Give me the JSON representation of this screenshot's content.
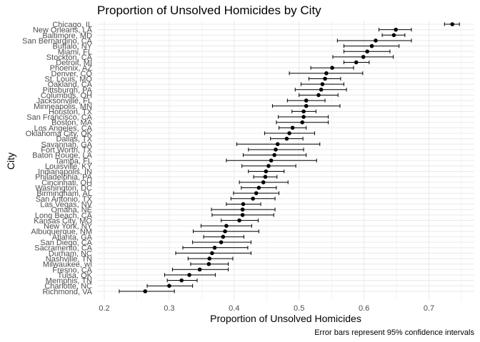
{
  "chart_data": {
    "type": "scatter",
    "title": "Proportion of Unsolved Homicides by City",
    "xlabel": "Proportion of Unsolved Homicides",
    "ylabel": "City",
    "caption": "Error bars represent 95% confidence intervals",
    "xlim": [
      0.2,
      0.75
    ],
    "xticks": [
      "0.2",
      "0.3",
      "0.4",
      "0.5",
      "0.6",
      "0.7"
    ],
    "grid": true,
    "legend": "none",
    "point_color": "#000000",
    "grid_color": "#ebebeb",
    "series": [
      {
        "error_bars": "95% confidence interval",
        "points": [
          {
            "city": "Chicago, IL",
            "estimate": 0.736,
            "lower": 0.724,
            "upper": 0.747
          },
          {
            "city": "New Orleans, LA",
            "estimate": 0.649,
            "lower": 0.623,
            "upper": 0.673
          },
          {
            "city": "Baltimore, MD",
            "estimate": 0.646,
            "lower": 0.628,
            "upper": 0.663
          },
          {
            "city": "San Bernardino, CA",
            "estimate": 0.618,
            "lower": 0.559,
            "upper": 0.673
          },
          {
            "city": "Buffalo, NY",
            "estimate": 0.612,
            "lower": 0.569,
            "upper": 0.654
          },
          {
            "city": "Miami, FL",
            "estimate": 0.605,
            "lower": 0.569,
            "upper": 0.64
          },
          {
            "city": "Stockton, CA",
            "estimate": 0.599,
            "lower": 0.552,
            "upper": 0.645
          },
          {
            "city": "Detroit, MI",
            "estimate": 0.588,
            "lower": 0.569,
            "upper": 0.608
          },
          {
            "city": "Phoenix, AZ",
            "estimate": 0.551,
            "lower": 0.518,
            "upper": 0.584
          },
          {
            "city": "Denver, CO",
            "estimate": 0.542,
            "lower": 0.485,
            "upper": 0.598
          },
          {
            "city": "St. Louis, MO",
            "estimate": 0.54,
            "lower": 0.515,
            "upper": 0.564
          },
          {
            "city": "Oakland, CA",
            "estimate": 0.536,
            "lower": 0.503,
            "upper": 0.569
          },
          {
            "city": "Pittsburgh, PA",
            "estimate": 0.534,
            "lower": 0.494,
            "upper": 0.573
          },
          {
            "city": "Columbus, OH",
            "estimate": 0.53,
            "lower": 0.5,
            "upper": 0.56
          },
          {
            "city": "Jacksonville, FL",
            "estimate": 0.511,
            "lower": 0.482,
            "upper": 0.54
          },
          {
            "city": "Minneapolis, MN",
            "estimate": 0.511,
            "lower": 0.459,
            "upper": 0.563
          },
          {
            "city": "Houston, TX",
            "estimate": 0.507,
            "lower": 0.489,
            "upper": 0.526
          },
          {
            "city": "San Francisco, CA",
            "estimate": 0.507,
            "lower": 0.468,
            "upper": 0.545
          },
          {
            "city": "Boston, MA",
            "estimate": 0.505,
            "lower": 0.465,
            "upper": 0.545
          },
          {
            "city": "Los Angeles, CA",
            "estimate": 0.49,
            "lower": 0.469,
            "upper": 0.511
          },
          {
            "city": "Oklahoma City, OK",
            "estimate": 0.485,
            "lower": 0.447,
            "upper": 0.524
          },
          {
            "city": "Dallas, TX",
            "estimate": 0.481,
            "lower": 0.456,
            "upper": 0.506
          },
          {
            "city": "Savannah, GA",
            "estimate": 0.467,
            "lower": 0.404,
            "upper": 0.532
          },
          {
            "city": "Fort Worth, TX",
            "estimate": 0.464,
            "lower": 0.422,
            "upper": 0.507
          },
          {
            "city": "Baton Rouge, LA",
            "estimate": 0.462,
            "lower": 0.414,
            "upper": 0.511
          },
          {
            "city": "Tampa, FL",
            "estimate": 0.457,
            "lower": 0.388,
            "upper": 0.527
          },
          {
            "city": "Louisville, KY",
            "estimate": 0.453,
            "lower": 0.412,
            "upper": 0.495
          },
          {
            "city": "Indianapolis, IN",
            "estimate": 0.449,
            "lower": 0.422,
            "upper": 0.477
          },
          {
            "city": "Philadelphia, PA",
            "estimate": 0.448,
            "lower": 0.43,
            "upper": 0.466
          },
          {
            "city": "Cincinnati, OH",
            "estimate": 0.445,
            "lower": 0.408,
            "upper": 0.483
          },
          {
            "city": "Washington, DC",
            "estimate": 0.438,
            "lower": 0.411,
            "upper": 0.465
          },
          {
            "city": "Birmingham, AL",
            "estimate": 0.434,
            "lower": 0.399,
            "upper": 0.469
          },
          {
            "city": "San Antonio, TX",
            "estimate": 0.429,
            "lower": 0.395,
            "upper": 0.463
          },
          {
            "city": "Las Vegas, NV",
            "estimate": 0.414,
            "lower": 0.388,
            "upper": 0.441
          },
          {
            "city": "Omaha, NE",
            "estimate": 0.413,
            "lower": 0.365,
            "upper": 0.463
          },
          {
            "city": "Long Beach, CA",
            "estimate": 0.413,
            "lower": 0.366,
            "upper": 0.461
          },
          {
            "city": "Kansas City, MO",
            "estimate": 0.408,
            "lower": 0.38,
            "upper": 0.437
          },
          {
            "city": "New York, NY",
            "estimate": 0.388,
            "lower": 0.349,
            "upper": 0.427
          },
          {
            "city": "Albuquerque, NM",
            "estimate": 0.386,
            "lower": 0.337,
            "upper": 0.438
          },
          {
            "city": "Atlanta, GA",
            "estimate": 0.383,
            "lower": 0.353,
            "upper": 0.415
          },
          {
            "city": "San Diego, CA",
            "estimate": 0.38,
            "lower": 0.336,
            "upper": 0.426
          },
          {
            "city": "Sacramento, CA",
            "estimate": 0.37,
            "lower": 0.321,
            "upper": 0.421
          },
          {
            "city": "Durham, NC",
            "estimate": 0.366,
            "lower": 0.31,
            "upper": 0.426
          },
          {
            "city": "Nashville, TN",
            "estimate": 0.362,
            "lower": 0.329,
            "upper": 0.398
          },
          {
            "city": "Milwaukee, wI",
            "estimate": 0.361,
            "lower": 0.333,
            "upper": 0.391
          },
          {
            "city": "Fresno, CA",
            "estimate": 0.347,
            "lower": 0.305,
            "upper": 0.391
          },
          {
            "city": "Tulsa, OK",
            "estimate": 0.331,
            "lower": 0.293,
            "upper": 0.371
          },
          {
            "city": "Memphis, TN",
            "estimate": 0.319,
            "lower": 0.297,
            "upper": 0.343
          },
          {
            "city": "Charlotte, NC",
            "estimate": 0.3,
            "lower": 0.266,
            "upper": 0.336
          },
          {
            "city": "Richmond, VA",
            "estimate": 0.263,
            "lower": 0.223,
            "upper": 0.308
          }
        ]
      }
    ]
  }
}
